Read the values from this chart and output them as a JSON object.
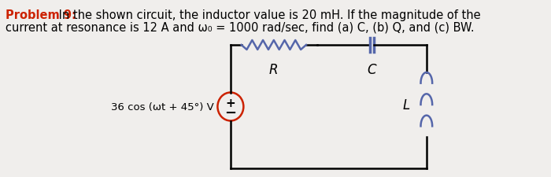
{
  "bg_color": "#f0eeec",
  "text_color": "#000000",
  "bold_color": "#cc2200",
  "circuit_color": "#000000",
  "source_circle_color": "#cc2200",
  "resistor_color": "#5566aa",
  "capacitor_color": "#5566aa",
  "inductor_color": "#5566aa",
  "problem_bold": "Problem 9:",
  "line1_rest": " In the shown circuit, the inductor value is 20 mH. If the magnitude of the",
  "line2": "current at resonance is 12 A and ω₀ = 1000 rad/sec, find (a) C, (b) Q, and (c) BW.",
  "source_label": "36 cos (ωt + 45°) V",
  "R_label": "R",
  "C_label": "C",
  "L_label": "L",
  "font_size_problem": 10.5,
  "font_size_labels": 12,
  "lw_circuit": 1.8
}
